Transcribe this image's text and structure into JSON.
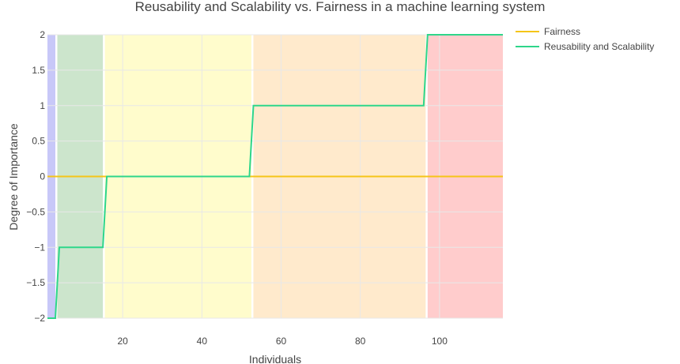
{
  "chart_data": {
    "type": "line",
    "title": "Reusability and Scalability vs. Fairness in a machine learning system",
    "xlabel": "Individuals",
    "ylabel": "Degree of Importance",
    "xlim": [
      1,
      116
    ],
    "ylim": [
      -2,
      2
    ],
    "x_ticks": [
      20,
      40,
      60,
      80,
      100
    ],
    "y_ticks": [
      -2,
      -1.5,
      -1,
      -0.5,
      0,
      0.5,
      1,
      1.5,
      2
    ],
    "y_tick_labels": [
      "−2",
      "−1.5",
      "−1",
      "−0.5",
      "0",
      "0.5",
      "1",
      "1.5",
      "2"
    ],
    "grid": true,
    "legend_position": "top-right",
    "bands": [
      {
        "x0": 1,
        "x1": 3,
        "color": "#c8c8f8"
      },
      {
        "x0": 3.5,
        "x1": 15,
        "color": "#cce5cc"
      },
      {
        "x0": 15.5,
        "x1": 52.5,
        "color": "#fffccc"
      },
      {
        "x0": 53,
        "x1": 96.5,
        "color": "#ffeacc"
      },
      {
        "x0": 97,
        "x1": 116,
        "color": "#ffcccc"
      }
    ],
    "series": [
      {
        "name": "Fairness",
        "color": "#f5c518",
        "x": [
          1,
          116
        ],
        "y": [
          0,
          0
        ]
      },
      {
        "name": "Reusability and Scalability",
        "color": "#2ed68a",
        "x": [
          1,
          3,
          4,
          15,
          16,
          52,
          53,
          96,
          97,
          116
        ],
        "y": [
          -2,
          -2,
          -1,
          -1,
          0,
          0,
          1,
          1,
          2,
          2
        ]
      }
    ]
  }
}
